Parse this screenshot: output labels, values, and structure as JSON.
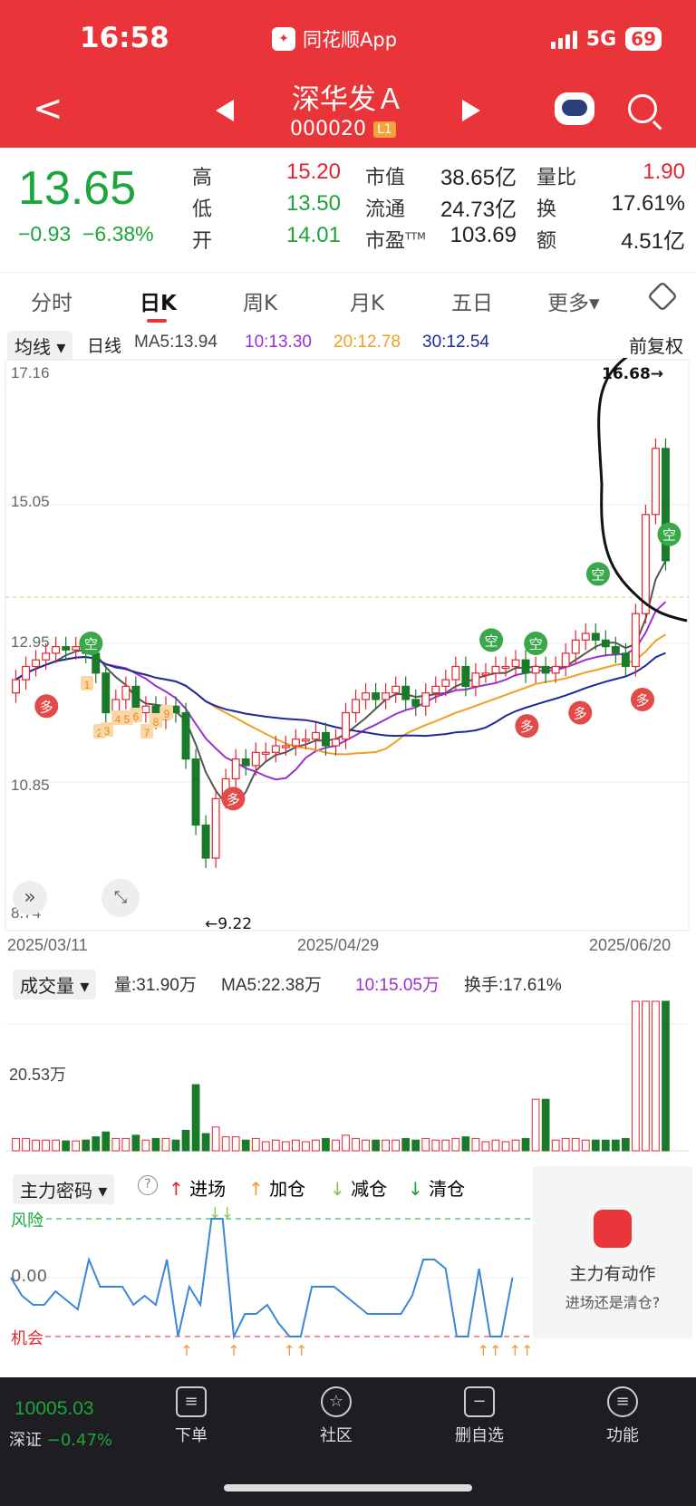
{
  "status_bar": {
    "time": "16:58",
    "app": "同花顺App",
    "network": "5G",
    "battery": "69"
  },
  "nav": {
    "back": "<",
    "stock_name": "深华发Ａ",
    "stock_code": "000020",
    "level": "L1"
  },
  "quote": {
    "price": "13.65",
    "change": "−0.93",
    "change_pct": "−6.38%",
    "high_label": "高",
    "high": "15.20",
    "low_label": "低",
    "low": "13.50",
    "open_label": "开",
    "open": "14.01",
    "mcap_label": "市值",
    "mcap": "38.65亿",
    "float_label": "流通",
    "float": "24.73亿",
    "pe_label": "市盈",
    "pe_sup": "TTM",
    "pe": "103.69",
    "vr_label": "量比",
    "vr": "1.90",
    "turnover_label": "换",
    "turnover": "17.61%",
    "amount_label": "额",
    "amount": "4.51亿"
  },
  "tabs": [
    "分时",
    "日K",
    "周K",
    "月K",
    "五日",
    "更多▾"
  ],
  "kchart": {
    "ma_select": "均线 ▾",
    "period": "日线",
    "ma5": "MA5:13.94",
    "ma10": "10:13.30",
    "ma20": "20:12.78",
    "ma30": "30:12.54",
    "adjust": "前复权",
    "y_labels": [
      "17.16",
      "15.05",
      "12.95",
      "10.85",
      "8.74"
    ],
    "dates": [
      "2025/03/11",
      "2025/04/29",
      "2025/06/20"
    ],
    "max_note": "16.68→",
    "min_note": "←9.22",
    "kong": "空",
    "duo": "多",
    "nums": [
      "1",
      "2",
      "3",
      "4",
      "5",
      "6",
      "7",
      "8",
      "9"
    ]
  },
  "volume": {
    "select": "成交量 ▾",
    "vol": "量:31.90万",
    "ma5": "MA5:22.38万",
    "ma10": "10:15.05万",
    "turnover": "换手:17.61%",
    "y_label": "20.53万"
  },
  "indicator": {
    "select": "主力密码 ▾",
    "help": "?",
    "legend": [
      "进场",
      "加仓",
      "减仓",
      "清仓"
    ],
    "risk": "风险",
    "zero": "0.00",
    "chance": "机会",
    "card_title": "主力有动作",
    "card_sub": "进场还是清仓?"
  },
  "bottom": {
    "index_value": "10005.03",
    "index_name": "深证",
    "index_chg": "−0.47%",
    "items": [
      "下单",
      "社区",
      "删自选",
      "功能"
    ]
  },
  "colors": {
    "up": "#e6232d",
    "down": "#1aa63a",
    "header": "#e9353a"
  },
  "chart_data": {
    "type": "candlestick",
    "y_range": [
      8.74,
      17.16
    ],
    "closes": [
      12.4,
      12.6,
      12.7,
      12.8,
      12.9,
      12.85,
      12.9,
      12.8,
      12.5,
      11.9,
      12.1,
      12.3,
      11.9,
      12.0,
      11.8,
      12.0,
      11.9,
      11.2,
      10.2,
      9.7,
      10.6,
      10.9,
      11.2,
      11.1,
      11.3,
      11.3,
      11.4,
      11.4,
      11.5,
      11.5,
      11.6,
      11.4,
      11.5,
      11.9,
      12.1,
      12.2,
      12.1,
      12.2,
      12.3,
      12.1,
      12.0,
      12.2,
      12.3,
      12.4,
      12.6,
      12.3,
      12.5,
      12.5,
      12.6,
      12.6,
      12.7,
      12.5,
      12.6,
      12.5,
      12.6,
      12.8,
      13.0,
      13.1,
      13.0,
      12.9,
      12.8,
      12.6,
      13.4,
      14.9,
      15.9,
      14.2
    ],
    "ma5_last": 13.94,
    "ma10_last": 13.3,
    "ma20_last": 12.78,
    "ma30_last": 12.54,
    "max": 16.68,
    "min": 9.22
  }
}
